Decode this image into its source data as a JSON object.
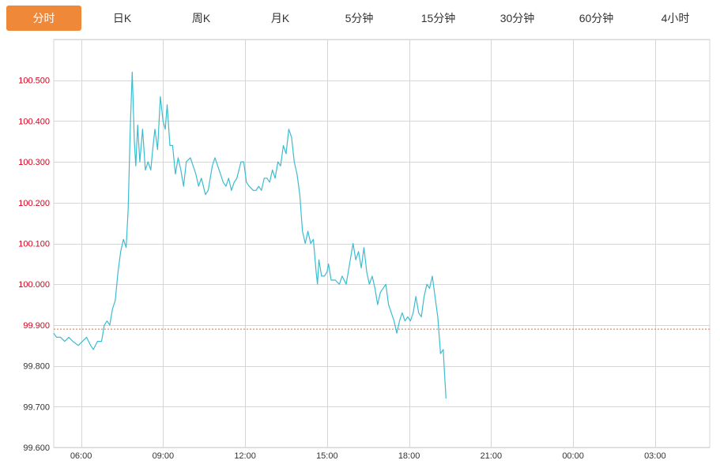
{
  "tabs": [
    {
      "label": "分时",
      "active": true
    },
    {
      "label": "日K",
      "active": false
    },
    {
      "label": "周K",
      "active": false
    },
    {
      "label": "月K",
      "active": false
    },
    {
      "label": "5分钟",
      "active": false
    },
    {
      "label": "15分钟",
      "active": false
    },
    {
      "label": "30分钟",
      "active": false
    },
    {
      "label": "60分钟",
      "active": false
    },
    {
      "label": "4小时",
      "active": false
    }
  ],
  "colors": {
    "accent": "#f0883a",
    "line": "#3bbcd0",
    "price_label": "#d9001b",
    "base_label": "#333333",
    "grid": "#d6d6d6",
    "reference": "#e8743b"
  },
  "chart_data": {
    "type": "line",
    "x_ticks": [
      "06:00",
      "09:00",
      "12:00",
      "15:00",
      "18:00",
      "21:00",
      "00:00",
      "03:00"
    ],
    "x_range_hours": [
      5.0,
      29.0
    ],
    "y_ticks": [
      {
        "value": 100.5,
        "label": "100.500",
        "above_ref": true
      },
      {
        "value": 100.4,
        "label": "100.400",
        "above_ref": true
      },
      {
        "value": 100.3,
        "label": "100.300",
        "above_ref": true
      },
      {
        "value": 100.2,
        "label": "100.200",
        "above_ref": true
      },
      {
        "value": 100.1,
        "label": "100.100",
        "above_ref": true
      },
      {
        "value": 100.0,
        "label": "100.000",
        "above_ref": true
      },
      {
        "value": 99.9,
        "label": "99.900",
        "above_ref": true
      },
      {
        "value": 99.8,
        "label": "99.800",
        "above_ref": false
      },
      {
        "value": 99.7,
        "label": "99.700",
        "above_ref": false
      },
      {
        "value": 99.6,
        "label": "99.600",
        "above_ref": false
      }
    ],
    "ylim": [
      99.6,
      100.6
    ],
    "reference_value": 99.89,
    "grid": true,
    "series": [
      {
        "points": [
          [
            5.0,
            99.88
          ],
          [
            5.1,
            99.87
          ],
          [
            5.25,
            99.87
          ],
          [
            5.4,
            99.86
          ],
          [
            5.55,
            99.87
          ],
          [
            5.7,
            99.86
          ],
          [
            5.9,
            99.85
          ],
          [
            6.05,
            99.86
          ],
          [
            6.2,
            99.87
          ],
          [
            6.35,
            99.85
          ],
          [
            6.45,
            99.84
          ],
          [
            6.6,
            99.86
          ],
          [
            6.75,
            99.86
          ],
          [
            6.85,
            99.9
          ],
          [
            6.95,
            99.91
          ],
          [
            7.05,
            99.9
          ],
          [
            7.15,
            99.94
          ],
          [
            7.25,
            99.96
          ],
          [
            7.35,
            100.03
          ],
          [
            7.45,
            100.08
          ],
          [
            7.55,
            100.11
          ],
          [
            7.65,
            100.09
          ],
          [
            7.72,
            100.18
          ],
          [
            7.8,
            100.38
          ],
          [
            7.87,
            100.52
          ],
          [
            7.95,
            100.35
          ],
          [
            8.0,
            100.29
          ],
          [
            8.07,
            100.39
          ],
          [
            8.15,
            100.3
          ],
          [
            8.25,
            100.38
          ],
          [
            8.35,
            100.28
          ],
          [
            8.45,
            100.3
          ],
          [
            8.55,
            100.28
          ],
          [
            8.62,
            100.33
          ],
          [
            8.7,
            100.38
          ],
          [
            8.8,
            100.33
          ],
          [
            8.9,
            100.46
          ],
          [
            9.0,
            100.4
          ],
          [
            9.08,
            100.38
          ],
          [
            9.15,
            100.44
          ],
          [
            9.25,
            100.34
          ],
          [
            9.35,
            100.34
          ],
          [
            9.45,
            100.27
          ],
          [
            9.55,
            100.31
          ],
          [
            9.65,
            100.28
          ],
          [
            9.75,
            100.24
          ],
          [
            9.85,
            100.3
          ],
          [
            10.0,
            100.31
          ],
          [
            10.1,
            100.29
          ],
          [
            10.2,
            100.27
          ],
          [
            10.3,
            100.24
          ],
          [
            10.4,
            100.26
          ],
          [
            10.55,
            100.22
          ],
          [
            10.65,
            100.23
          ],
          [
            10.8,
            100.29
          ],
          [
            10.9,
            100.31
          ],
          [
            11.0,
            100.29
          ],
          [
            11.1,
            100.27
          ],
          [
            11.2,
            100.25
          ],
          [
            11.3,
            100.24
          ],
          [
            11.4,
            100.26
          ],
          [
            11.5,
            100.23
          ],
          [
            11.6,
            100.25
          ],
          [
            11.7,
            100.26
          ],
          [
            11.85,
            100.3
          ],
          [
            11.95,
            100.3
          ],
          [
            12.05,
            100.25
          ],
          [
            12.15,
            100.24
          ],
          [
            12.3,
            100.23
          ],
          [
            12.4,
            100.23
          ],
          [
            12.5,
            100.24
          ],
          [
            12.6,
            100.23
          ],
          [
            12.7,
            100.26
          ],
          [
            12.8,
            100.26
          ],
          [
            12.9,
            100.25
          ],
          [
            13.0,
            100.28
          ],
          [
            13.1,
            100.26
          ],
          [
            13.2,
            100.3
          ],
          [
            13.3,
            100.29
          ],
          [
            13.4,
            100.34
          ],
          [
            13.5,
            100.32
          ],
          [
            13.6,
            100.38
          ],
          [
            13.7,
            100.36
          ],
          [
            13.8,
            100.3
          ],
          [
            13.9,
            100.27
          ],
          [
            14.0,
            100.22
          ],
          [
            14.1,
            100.13
          ],
          [
            14.2,
            100.1
          ],
          [
            14.3,
            100.13
          ],
          [
            14.4,
            100.1
          ],
          [
            14.5,
            100.11
          ],
          [
            14.6,
            100.03
          ],
          [
            14.65,
            100.0
          ],
          [
            14.7,
            100.06
          ],
          [
            14.8,
            100.02
          ],
          [
            14.9,
            100.02
          ],
          [
            15.0,
            100.03
          ],
          [
            15.05,
            100.05
          ],
          [
            15.15,
            100.01
          ],
          [
            15.3,
            100.01
          ],
          [
            15.45,
            100.0
          ],
          [
            15.55,
            100.02
          ],
          [
            15.7,
            100.0
          ],
          [
            15.85,
            100.06
          ],
          [
            15.95,
            100.1
          ],
          [
            16.05,
            100.06
          ],
          [
            16.15,
            100.08
          ],
          [
            16.25,
            100.04
          ],
          [
            16.35,
            100.09
          ],
          [
            16.45,
            100.03
          ],
          [
            16.55,
            100.0
          ],
          [
            16.65,
            100.02
          ],
          [
            16.75,
            99.99
          ],
          [
            16.85,
            99.95
          ],
          [
            16.95,
            99.98
          ],
          [
            17.05,
            99.99
          ],
          [
            17.15,
            100.0
          ],
          [
            17.25,
            99.95
          ],
          [
            17.35,
            99.93
          ],
          [
            17.45,
            99.91
          ],
          [
            17.55,
            99.88
          ],
          [
            17.65,
            99.91
          ],
          [
            17.75,
            99.93
          ],
          [
            17.85,
            99.91
          ],
          [
            17.95,
            99.92
          ],
          [
            18.05,
            99.91
          ],
          [
            18.15,
            99.93
          ],
          [
            18.25,
            99.97
          ],
          [
            18.35,
            99.93
          ],
          [
            18.45,
            99.92
          ],
          [
            18.55,
            99.97
          ],
          [
            18.65,
            100.0
          ],
          [
            18.75,
            99.99
          ],
          [
            18.85,
            100.02
          ],
          [
            18.95,
            99.97
          ],
          [
            19.05,
            99.92
          ],
          [
            19.15,
            99.83
          ],
          [
            19.25,
            99.84
          ],
          [
            19.3,
            99.78
          ],
          [
            19.35,
            99.72
          ]
        ]
      }
    ]
  }
}
